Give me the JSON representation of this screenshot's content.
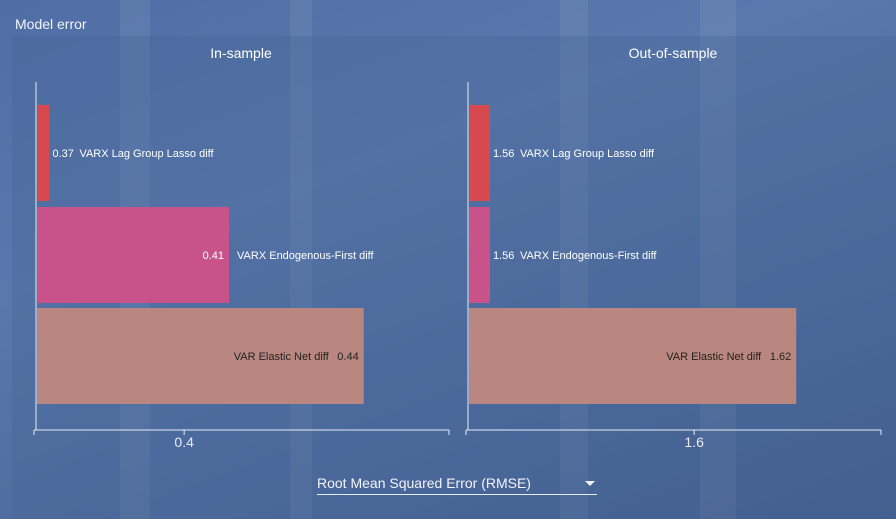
{
  "panel": {
    "title": "Model error"
  },
  "metric_selector": {
    "selected": "Root Mean Squared Error (RMSE)"
  },
  "colors": {
    "series": [
      "#d64a4f",
      "#c7538a",
      "#b9877f"
    ],
    "axis": "#e8ecf2",
    "text": "#ffffff",
    "dark_text": "#222222"
  },
  "chart_data": [
    {
      "type": "bar",
      "orientation": "horizontal",
      "title": "In-sample",
      "categories": [
        "VARX Lag Group Lasso diff",
        "VARX Endogenous-First diff",
        "VAR Elastic Net diff"
      ],
      "values": [
        0.37,
        0.41,
        0.44
      ],
      "value_labels": [
        "0.37",
        "0.41",
        "0.44"
      ],
      "xlim": [
        0.367,
        0.459
      ],
      "ticks": [
        0.4
      ],
      "tick_labels": [
        "0.4"
      ]
    },
    {
      "type": "bar",
      "orientation": "horizontal",
      "title": "Out-of-sample",
      "categories": [
        "VARX Lag Group Lasso diff",
        "VARX Endogenous-First diff",
        "VAR Elastic Net diff"
      ],
      "values": [
        1.56,
        1.56,
        1.62
      ],
      "value_labels": [
        "1.56",
        "1.56",
        "1.62"
      ],
      "xlim": [
        1.5557,
        1.6366
      ],
      "ticks": [
        1.6
      ],
      "tick_labels": [
        "1.6"
      ]
    }
  ]
}
